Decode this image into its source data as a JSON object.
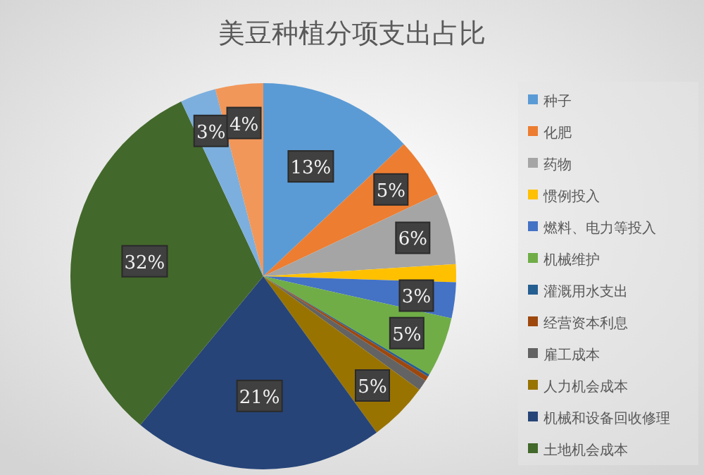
{
  "chart_data": {
    "type": "pie",
    "title": "美豆种植分项支出占比",
    "categories": [
      "种子",
      "化肥",
      "药物",
      "惯例投入",
      "燃料、电力等投入",
      "机械维护",
      "灌溉用水支出",
      "经营资本利息",
      "雇工成本",
      "人力机会成本",
      "机械和设备回收修理",
      "土地机会成本",
      null,
      null
    ],
    "values": [
      13,
      5,
      6,
      1.5,
      3,
      5,
      0.2,
      0.4,
      0.9,
      5,
      21,
      32,
      3,
      4
    ],
    "value_labels": [
      "13%",
      "5%",
      "6%",
      null,
      "3%",
      "5%",
      null,
      null,
      null,
      "5%",
      "21%",
      "32%",
      "3%",
      "4%"
    ],
    "colors": [
      "#5b9bd5",
      "#ed7d31",
      "#a5a5a5",
      "#ffc000",
      "#4472c4",
      "#70ad47",
      "#255e91",
      "#9e480e",
      "#636363",
      "#997300",
      "#264478",
      "#43682b",
      "#7cafdd",
      "#f1975a"
    ],
    "legend": "right"
  }
}
